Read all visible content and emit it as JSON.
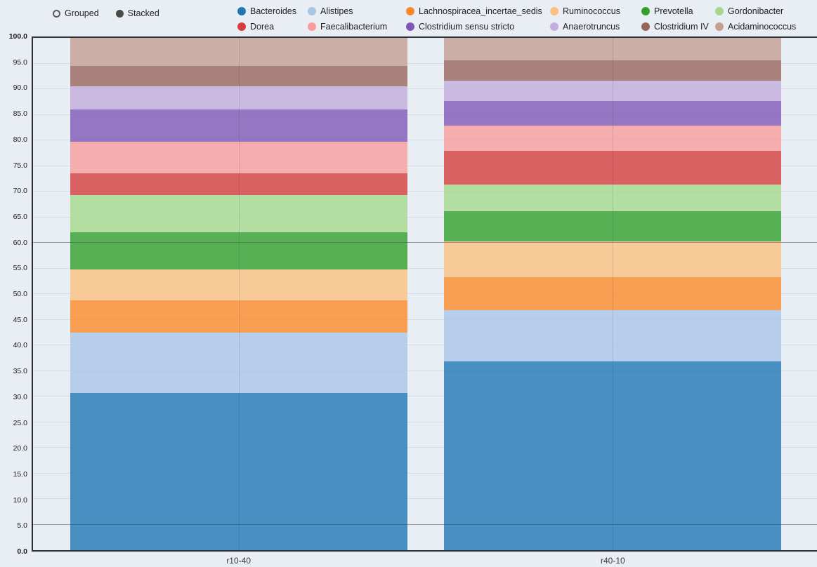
{
  "page": {
    "background": "#e9edf4",
    "axis_color": "#2c2f35"
  },
  "legend": {
    "modes": [
      {
        "label": "Grouped",
        "selected": false,
        "icon": "radio-circle-icon"
      },
      {
        "label": "Stacked",
        "selected": true,
        "icon": "radio-circle-icon"
      }
    ]
  },
  "chart_data": {
    "type": "bar",
    "stacked": true,
    "orientation": "vertical",
    "title": "",
    "xlabel": "",
    "ylabel": "",
    "categories": [
      "r10-40",
      "r40-10"
    ],
    "series": [
      {
        "name": "Bacteroides",
        "color": "#1f78b4",
        "values": [
          30.7,
          36.9
        ]
      },
      {
        "name": "Alistipes",
        "color": "#a9c6e8",
        "values": [
          11.8,
          10.0
        ]
      },
      {
        "name": "Lachnospiracea_incertae_sedis",
        "color": "#fb8b28",
        "values": [
          6.3,
          6.4
        ]
      },
      {
        "name": "Ruminococcus",
        "color": "#fbc181",
        "values": [
          6.0,
          7.0
        ]
      },
      {
        "name": "Prevotella",
        "color": "#33a02c",
        "values": [
          7.2,
          5.9
        ]
      },
      {
        "name": "Gordonibacter",
        "color": "#a5d98c",
        "values": [
          7.3,
          5.2
        ]
      },
      {
        "name": "Dorea",
        "color": "#d43d3d",
        "values": [
          4.2,
          6.6
        ]
      },
      {
        "name": "Faecalibacterium",
        "color": "#f89c9c",
        "values": [
          6.2,
          4.9
        ]
      },
      {
        "name": "Clostridium sensu stricto",
        "color": "#7f58b5",
        "values": [
          6.3,
          4.8
        ]
      },
      {
        "name": "Anaerotruncus",
        "color": "#c2addd",
        "values": [
          4.5,
          4.0
        ]
      },
      {
        "name": "Clostridium IV",
        "color": "#97655c",
        "values": [
          4.0,
          3.9
        ]
      },
      {
        "name": "Acidaminococcus",
        "color": "#c4a094",
        "values": [
          5.5,
          4.4
        ]
      }
    ],
    "ylim": [
      0,
      100
    ],
    "ytick_step": 5,
    "ytick_labels": [
      "0.0",
      "5.0",
      "10.0",
      "15.0",
      "20.0",
      "25.0",
      "30.0",
      "35.0",
      "40.0",
      "45.0",
      "50.0",
      "55.0",
      "60.0",
      "65.0",
      "70.0",
      "75.0",
      "80.0",
      "85.0",
      "90.0",
      "95.0",
      "100.0"
    ],
    "grid": true,
    "emphasis_gridlines": [
      60,
      5
    ],
    "legend_position": "top",
    "bar_opacity": 0.8
  }
}
